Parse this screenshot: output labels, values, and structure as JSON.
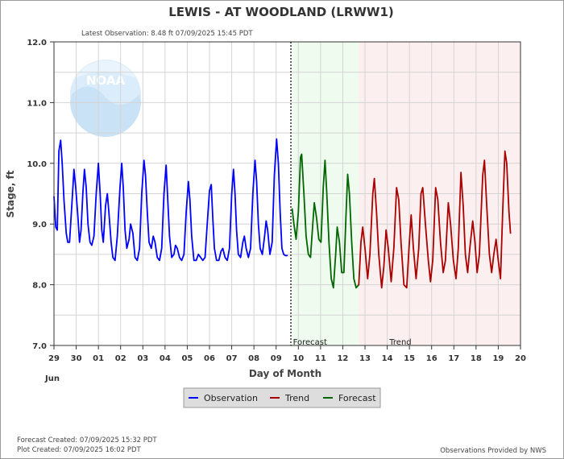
{
  "chart_data": {
    "type": "line",
    "title": "LEWIS - AT WOODLAND  (LRWW1)",
    "subtitle": "Latest Observation: 8.48 ft 07/09/2025 15:45 PDT",
    "xlabel": "Day of Month",
    "ylabel": "Stage, ft",
    "month_label": "Jun",
    "x_ticks": [
      "29",
      "30",
      "01",
      "02",
      "03",
      "04",
      "05",
      "06",
      "07",
      "08",
      "09",
      "10",
      "11",
      "12",
      "13",
      "14",
      "15",
      "16",
      "17",
      "18",
      "19",
      "20"
    ],
    "y_ticks": [
      "12.0",
      "11.0",
      "10.0",
      "9.0",
      "8.0",
      "7.0"
    ],
    "ylim": [
      7.0,
      12.0
    ],
    "xlim": [
      29,
      50
    ],
    "grid": true,
    "zones": [
      {
        "label": "Forecast",
        "from": 39.72,
        "to": 42.72,
        "color": "#eefbee"
      },
      {
        "label": "Trend",
        "from": 42.72,
        "to": 50,
        "color": "#fcefef"
      }
    ],
    "series": [
      {
        "name": "Observation",
        "color": "#0000ff",
        "points": [
          [
            29.0,
            9.45
          ],
          [
            29.08,
            8.95
          ],
          [
            29.15,
            8.9
          ],
          [
            29.22,
            10.2
          ],
          [
            29.3,
            10.38
          ],
          [
            29.37,
            10.0
          ],
          [
            29.45,
            9.4
          ],
          [
            29.55,
            8.85
          ],
          [
            29.62,
            8.7
          ],
          [
            29.7,
            8.7
          ],
          [
            29.8,
            9.3
          ],
          [
            29.9,
            9.9
          ],
          [
            29.98,
            9.6
          ],
          [
            30.08,
            9.1
          ],
          [
            30.15,
            8.7
          ],
          [
            30.22,
            8.9
          ],
          [
            30.3,
            9.5
          ],
          [
            30.37,
            9.9
          ],
          [
            30.45,
            9.6
          ],
          [
            30.53,
            9.0
          ],
          [
            30.62,
            8.7
          ],
          [
            30.7,
            8.65
          ],
          [
            30.8,
            8.8
          ],
          [
            30.9,
            9.5
          ],
          [
            31.0,
            10.0
          ],
          [
            31.08,
            9.5
          ],
          [
            31.15,
            8.9
          ],
          [
            31.22,
            8.7
          ],
          [
            31.32,
            9.3
          ],
          [
            31.4,
            9.5
          ],
          [
            31.47,
            9.2
          ],
          [
            31.57,
            8.7
          ],
          [
            31.65,
            8.45
          ],
          [
            31.75,
            8.4
          ],
          [
            31.85,
            8.8
          ],
          [
            31.97,
            9.6
          ],
          [
            32.05,
            10.0
          ],
          [
            32.12,
            9.6
          ],
          [
            32.2,
            8.9
          ],
          [
            32.28,
            8.6
          ],
          [
            32.38,
            8.75
          ],
          [
            32.45,
            9.0
          ],
          [
            32.55,
            8.85
          ],
          [
            32.65,
            8.45
          ],
          [
            32.75,
            8.4
          ],
          [
            32.85,
            8.6
          ],
          [
            32.95,
            9.5
          ],
          [
            33.05,
            10.05
          ],
          [
            33.12,
            9.8
          ],
          [
            33.2,
            9.2
          ],
          [
            33.28,
            8.7
          ],
          [
            33.38,
            8.6
          ],
          [
            33.47,
            8.8
          ],
          [
            33.55,
            8.7
          ],
          [
            33.65,
            8.45
          ],
          [
            33.75,
            8.4
          ],
          [
            33.85,
            8.6
          ],
          [
            33.95,
            9.5
          ],
          [
            34.05,
            9.97
          ],
          [
            34.12,
            9.4
          ],
          [
            34.2,
            8.8
          ],
          [
            34.3,
            8.45
          ],
          [
            34.4,
            8.5
          ],
          [
            34.47,
            8.65
          ],
          [
            34.55,
            8.6
          ],
          [
            34.65,
            8.45
          ],
          [
            34.75,
            8.4
          ],
          [
            34.85,
            8.5
          ],
          [
            34.95,
            9.2
          ],
          [
            35.05,
            9.7
          ],
          [
            35.12,
            9.4
          ],
          [
            35.2,
            8.8
          ],
          [
            35.3,
            8.4
          ],
          [
            35.4,
            8.4
          ],
          [
            35.5,
            8.5
          ],
          [
            35.6,
            8.45
          ],
          [
            35.7,
            8.4
          ],
          [
            35.8,
            8.45
          ],
          [
            35.9,
            9.0
          ],
          [
            36.0,
            9.55
          ],
          [
            36.08,
            9.65
          ],
          [
            36.15,
            9.1
          ],
          [
            36.22,
            8.6
          ],
          [
            36.32,
            8.4
          ],
          [
            36.42,
            8.4
          ],
          [
            36.52,
            8.55
          ],
          [
            36.6,
            8.6
          ],
          [
            36.7,
            8.45
          ],
          [
            36.8,
            8.4
          ],
          [
            36.9,
            8.6
          ],
          [
            37.0,
            9.5
          ],
          [
            37.08,
            9.9
          ],
          [
            37.15,
            9.5
          ],
          [
            37.22,
            8.9
          ],
          [
            37.3,
            8.5
          ],
          [
            37.4,
            8.45
          ],
          [
            37.5,
            8.7
          ],
          [
            37.57,
            8.8
          ],
          [
            37.65,
            8.6
          ],
          [
            37.75,
            8.45
          ],
          [
            37.85,
            8.6
          ],
          [
            37.95,
            9.5
          ],
          [
            38.05,
            10.05
          ],
          [
            38.12,
            9.7
          ],
          [
            38.2,
            9.0
          ],
          [
            38.28,
            8.6
          ],
          [
            38.38,
            8.5
          ],
          [
            38.48,
            8.8
          ],
          [
            38.55,
            9.05
          ],
          [
            38.62,
            8.9
          ],
          [
            38.72,
            8.5
          ],
          [
            38.82,
            8.7
          ],
          [
            38.92,
            9.8
          ],
          [
            39.02,
            10.4
          ],
          [
            39.1,
            10.0
          ],
          [
            39.18,
            9.2
          ],
          [
            39.26,
            8.6
          ],
          [
            39.34,
            8.5
          ],
          [
            39.42,
            8.48
          ],
          [
            39.5,
            8.48
          ]
        ]
      },
      {
        "name": "Forecast",
        "color": "#006600",
        "points": [
          [
            39.72,
            9.25
          ],
          [
            39.8,
            9.0
          ],
          [
            39.9,
            8.75
          ],
          [
            40.0,
            9.2
          ],
          [
            40.1,
            10.1
          ],
          [
            40.15,
            10.15
          ],
          [
            40.25,
            9.5
          ],
          [
            40.35,
            8.8
          ],
          [
            40.45,
            8.5
          ],
          [
            40.55,
            8.45
          ],
          [
            40.65,
            9.0
          ],
          [
            40.72,
            9.35
          ],
          [
            40.82,
            9.1
          ],
          [
            40.92,
            8.75
          ],
          [
            41.02,
            8.7
          ],
          [
            41.12,
            9.6
          ],
          [
            41.2,
            10.05
          ],
          [
            41.28,
            9.5
          ],
          [
            41.38,
            8.7
          ],
          [
            41.48,
            8.1
          ],
          [
            41.58,
            7.95
          ],
          [
            41.68,
            8.5
          ],
          [
            41.75,
            8.95
          ],
          [
            41.85,
            8.7
          ],
          [
            41.95,
            8.2
          ],
          [
            42.05,
            8.2
          ],
          [
            42.15,
            9.2
          ],
          [
            42.22,
            9.82
          ],
          [
            42.3,
            9.5
          ],
          [
            42.4,
            8.7
          ],
          [
            42.5,
            8.1
          ],
          [
            42.6,
            7.95
          ],
          [
            42.72,
            8.0
          ]
        ]
      },
      {
        "name": "Trend",
        "color": "#aa0000",
        "points": [
          [
            42.72,
            8.0
          ],
          [
            42.82,
            8.7
          ],
          [
            42.9,
            8.95
          ],
          [
            43.0,
            8.6
          ],
          [
            43.12,
            8.1
          ],
          [
            43.22,
            8.5
          ],
          [
            43.35,
            9.5
          ],
          [
            43.42,
            9.75
          ],
          [
            43.52,
            9.2
          ],
          [
            43.62,
            8.5
          ],
          [
            43.75,
            7.95
          ],
          [
            43.85,
            8.3
          ],
          [
            43.95,
            8.9
          ],
          [
            44.05,
            8.6
          ],
          [
            44.18,
            8.05
          ],
          [
            44.3,
            8.6
          ],
          [
            44.42,
            9.6
          ],
          [
            44.52,
            9.4
          ],
          [
            44.62,
            8.7
          ],
          [
            44.75,
            8.0
          ],
          [
            44.88,
            7.95
          ],
          [
            44.98,
            8.6
          ],
          [
            45.08,
            9.15
          ],
          [
            45.18,
            8.6
          ],
          [
            45.3,
            8.1
          ],
          [
            45.42,
            8.6
          ],
          [
            45.52,
            9.5
          ],
          [
            45.6,
            9.6
          ],
          [
            45.72,
            9.0
          ],
          [
            45.85,
            8.4
          ],
          [
            45.95,
            8.05
          ],
          [
            46.05,
            8.4
          ],
          [
            46.18,
            9.6
          ],
          [
            46.28,
            9.4
          ],
          [
            46.4,
            8.7
          ],
          [
            46.52,
            8.2
          ],
          [
            46.62,
            8.4
          ],
          [
            46.75,
            9.35
          ],
          [
            46.85,
            9.0
          ],
          [
            46.98,
            8.4
          ],
          [
            47.1,
            8.1
          ],
          [
            47.2,
            8.6
          ],
          [
            47.32,
            9.85
          ],
          [
            47.42,
            9.3
          ],
          [
            47.52,
            8.5
          ],
          [
            47.62,
            8.2
          ],
          [
            47.72,
            8.6
          ],
          [
            47.85,
            9.05
          ],
          [
            47.95,
            8.7
          ],
          [
            48.05,
            8.2
          ],
          [
            48.15,
            8.5
          ],
          [
            48.3,
            9.8
          ],
          [
            48.38,
            10.05
          ],
          [
            48.48,
            9.3
          ],
          [
            48.6,
            8.5
          ],
          [
            48.7,
            8.2
          ],
          [
            48.8,
            8.5
          ],
          [
            48.9,
            8.75
          ],
          [
            49.0,
            8.4
          ],
          [
            49.1,
            8.1
          ],
          [
            49.2,
            9.2
          ],
          [
            49.3,
            10.2
          ],
          [
            49.38,
            10.0
          ],
          [
            49.48,
            9.2
          ],
          [
            49.55,
            8.85
          ]
        ]
      }
    ],
    "legend": [
      "Observation",
      "Trend",
      "Forecast"
    ],
    "legend_position": "bottom"
  },
  "footer": {
    "forecast_created": "Forecast Created: 07/09/2025 15:32 PDT",
    "plot_created": "Plot Created: 07/09/2025 16:02 PDT",
    "provider": "Observations Provided by NWS"
  },
  "logo_text": "NOAA"
}
